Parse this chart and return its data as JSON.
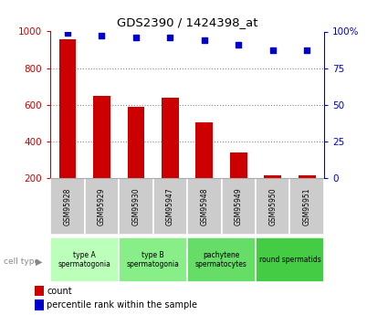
{
  "title": "GDS2390 / 1424398_at",
  "samples": [
    "GSM95928",
    "GSM95929",
    "GSM95930",
    "GSM95947",
    "GSM95948",
    "GSM95949",
    "GSM95950",
    "GSM95951"
  ],
  "counts": [
    960,
    650,
    590,
    640,
    505,
    340,
    215,
    215
  ],
  "percentiles": [
    99,
    97,
    96,
    96,
    94,
    91,
    87,
    87
  ],
  "cell_types": [
    {
      "label": "type A\nspermatogonia",
      "span": [
        0,
        2
      ],
      "color": "#bbffbb"
    },
    {
      "label": "type B\nspermatogonia",
      "span": [
        2,
        4
      ],
      "color": "#88ee88"
    },
    {
      "label": "pachytene\nspermatocytes",
      "span": [
        4,
        6
      ],
      "color": "#66dd66"
    },
    {
      "label": "round spermatids",
      "span": [
        6,
        8
      ],
      "color": "#44cc44"
    }
  ],
  "bar_color": "#cc0000",
  "dot_color": "#0000cc",
  "ylim_left": [
    200,
    1000
  ],
  "ylim_right": [
    0,
    100
  ],
  "yticks_left": [
    200,
    400,
    600,
    800,
    1000
  ],
  "yticks_right": [
    0,
    25,
    50,
    75,
    100
  ],
  "ylabel_left_color": "#cc0000",
  "ylabel_right_color": "#0000cc",
  "grid_color": "#888888",
  "sample_box_color": "#cccccc",
  "legend_count_color": "#cc0000",
  "legend_pct_color": "#0000cc",
  "cell_type_label_color": "#888888",
  "fig_width": 4.25,
  "fig_height": 3.45,
  "dpi": 100
}
